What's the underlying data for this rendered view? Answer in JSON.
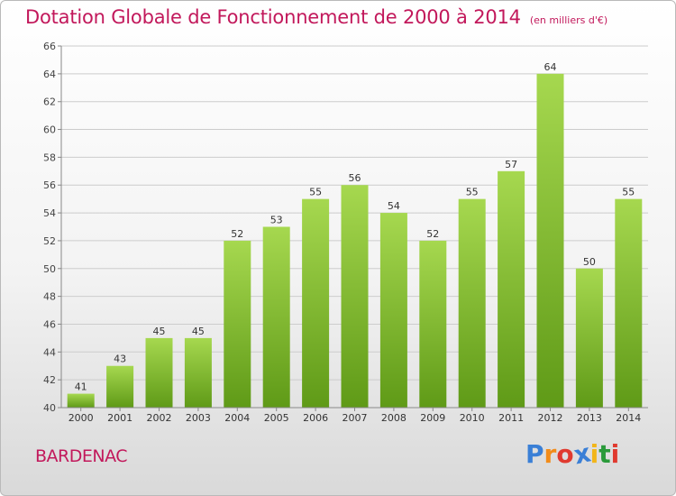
{
  "chart_data": {
    "type": "bar",
    "title": "Dotation Globale de Fonctionnement de 2000 à 2014",
    "subtitle": "(en milliers d'€)",
    "categories": [
      "2000",
      "2001",
      "2002",
      "2003",
      "2004",
      "2005",
      "2006",
      "2007",
      "2008",
      "2009",
      "2010",
      "2011",
      "2012",
      "2013",
      "2014"
    ],
    "values": [
      41,
      43,
      45,
      45,
      52,
      53,
      55,
      56,
      54,
      52,
      55,
      57,
      64,
      50,
      55
    ],
    "ylim": [
      40,
      66
    ],
    "yticks": [
      40,
      42,
      44,
      46,
      48,
      50,
      52,
      54,
      56,
      58,
      60,
      62,
      64,
      66
    ],
    "xlabel": "",
    "ylabel": "",
    "grid": true
  },
  "footer": {
    "place": "BARDENAC",
    "brand_letters": [
      "P",
      "r",
      "o",
      "x",
      "i",
      "t",
      "i"
    ],
    "brand_colors": [
      "#3a7fd6",
      "#f28c1a",
      "#e03a2f",
      "#3a7fd6",
      "#f2b61a",
      "#2a9a3a",
      "#e03a2f"
    ]
  },
  "colors": {
    "bar_top": "#a6d84f",
    "bar_bottom": "#5f9a17",
    "grid": "#cccccc",
    "accent": "#c2185b"
  }
}
